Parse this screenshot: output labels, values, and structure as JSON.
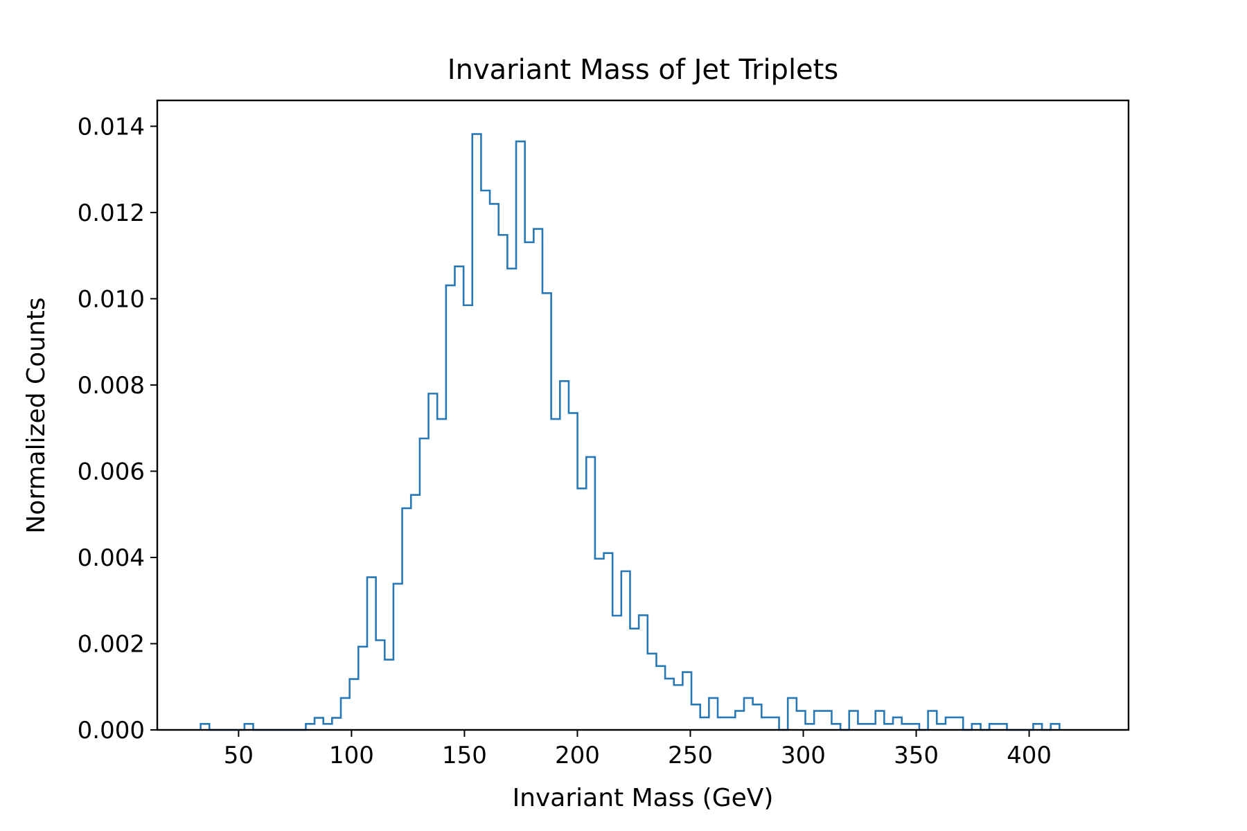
{
  "chart_data": {
    "type": "histogram",
    "title": "Invariant Mass of Jet Triplets",
    "xlabel": "Invariant Mass (GeV)",
    "ylabel": "Normalized Counts",
    "xlim": [
      14,
      444
    ],
    "ylim": [
      0,
      0.0146
    ],
    "xticks": [
      50,
      100,
      150,
      200,
      250,
      300,
      350,
      400
    ],
    "xtick_labels": [
      "50",
      "100",
      "150",
      "200",
      "250",
      "300",
      "350",
      "400"
    ],
    "yticks": [
      0,
      0.002,
      0.004,
      0.006,
      0.008,
      0.01,
      0.012,
      0.014
    ],
    "ytick_labels": [
      "0.000",
      "0.002",
      "0.004",
      "0.006",
      "0.008",
      "0.010",
      "0.012",
      "0.014"
    ],
    "bin_start": 33.2,
    "bin_width": 3.88,
    "values": [
      0.00014,
      0,
      0,
      0,
      0,
      0.00014,
      0,
      0,
      0,
      0,
      0,
      0,
      0.00014,
      0.00028,
      0.00014,
      0.00028,
      0.00074,
      0.00118,
      0.00193,
      0.00354,
      0.00208,
      0.00163,
      0.00339,
      0.00514,
      0.00545,
      0.00676,
      0.0078,
      0.00721,
      0.01031,
      0.01075,
      0.00985,
      0.01382,
      0.01251,
      0.0122,
      0.01148,
      0.0107,
      0.01365,
      0.01131,
      0.01162,
      0.01013,
      0.00721,
      0.00809,
      0.00735,
      0.0056,
      0.00633,
      0.00397,
      0.0041,
      0.00265,
      0.00368,
      0.00235,
      0.00266,
      0.00177,
      0.00148,
      0.00119,
      0.00104,
      0.00134,
      0.00059,
      0.00029,
      0.00074,
      0.00029,
      0.00029,
      0.00044,
      0.00074,
      0.00059,
      0.00029,
      0.00029,
      0,
      0.00074,
      0.00044,
      0.00014,
      0.00044,
      0.00044,
      0.00014,
      0,
      0.00044,
      0.00014,
      0.00014,
      0.00044,
      0.00014,
      0.00029,
      0.00014,
      0.00014,
      0,
      0.00044,
      0.00014,
      0.00029,
      0.00029,
      0,
      0.00014,
      0,
      0.00014,
      0.00014,
      0,
      0,
      0,
      0.00014,
      0,
      0.00014
    ],
    "line_color": "#2878b5",
    "grid": false,
    "legend": false
  }
}
